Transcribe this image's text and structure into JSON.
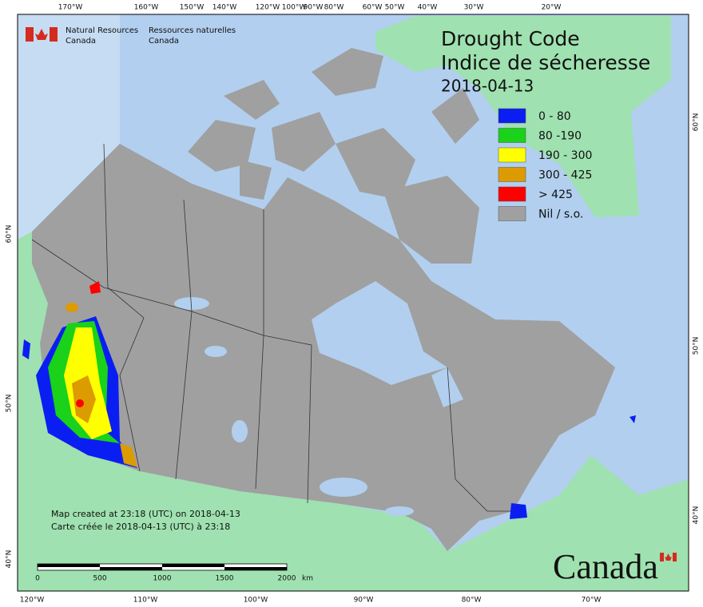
{
  "agency": {
    "en_1": "Natural Resources",
    "en_2": "Canada",
    "fr_1": "Ressources naturelles",
    "fr_2": "Canada"
  },
  "legend": {
    "title": "Drought Code",
    "title_fr": "Indice de sécheresse",
    "date": "2018-04-13",
    "items": [
      {
        "label": "0 - 80",
        "color": "#0a1ef2"
      },
      {
        "label": "80 -190",
        "color": "#19d219"
      },
      {
        "label": "190 - 300",
        "color": "#ffff00"
      },
      {
        "label": "300 - 425",
        "color": "#dc9b00"
      },
      {
        "label": "> 425",
        "color": "#ff0000"
      },
      {
        "label": "Nil / s.o.",
        "color": "#a0a0a0"
      }
    ]
  },
  "graticule": {
    "top": [
      "170°W",
      "160°W",
      "150°W",
      "140°W",
      "120°W",
      "100°W",
      "90°W",
      "80°W",
      "60°W",
      "50°W",
      "40°W",
      "30°W",
      "20°W"
    ],
    "bottom": [
      "120°W",
      "110°W",
      "100°W",
      "90°W",
      "80°W",
      "70°W"
    ],
    "left": [
      "60°N",
      "50°N",
      "40°N"
    ],
    "right": [
      "60°N",
      "50°N",
      "40°N"
    ]
  },
  "notes": [
    "Map created at 23:18 (UTC) on 2018-04-13",
    "Carte créée le 2018-04-13 (UTC) à 23:18"
  ],
  "scale_bar": {
    "labels": [
      "0",
      "500",
      "1000",
      "1500",
      "2000"
    ],
    "unit": "km"
  },
  "wordmark": "Canada"
}
